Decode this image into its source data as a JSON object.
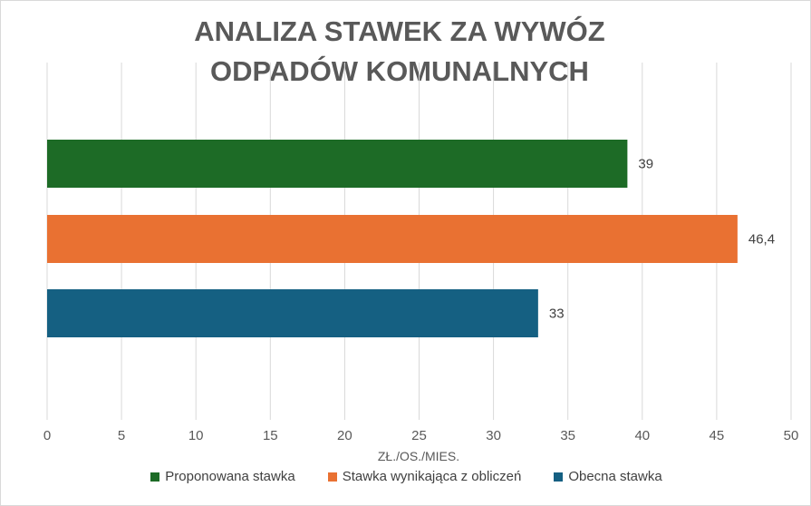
{
  "chart_data": {
    "type": "bar",
    "orientation": "horizontal",
    "title_lines": [
      "ANALIZA STAWEK ZA WYWÓZ",
      "ODPADÓW KOMUNALNYCH"
    ],
    "xlabel": "ZŁ./OS./MIES.",
    "xlim": [
      0,
      50
    ],
    "xticks": [
      0,
      5,
      10,
      15,
      20,
      25,
      30,
      35,
      40,
      45,
      50
    ],
    "grid": "vertical",
    "legend_position": "bottom",
    "series": [
      {
        "name": "Proponowana stawka",
        "value": 39,
        "label": "39",
        "color": "#1d6b26"
      },
      {
        "name": "Stawka wynikająca z obliczeń",
        "value": 46.4,
        "label": "46,4",
        "color": "#e97132"
      },
      {
        "name": "Obecna stawka",
        "value": 33,
        "label": "33",
        "color": "#156082"
      }
    ]
  }
}
